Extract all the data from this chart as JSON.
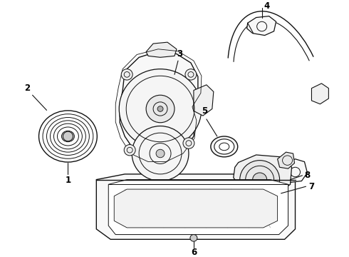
{
  "background_color": "#ffffff",
  "line_color": "#111111",
  "label_color": "#000000",
  "figsize": [
    4.9,
    3.6
  ],
  "dpi": 100
}
